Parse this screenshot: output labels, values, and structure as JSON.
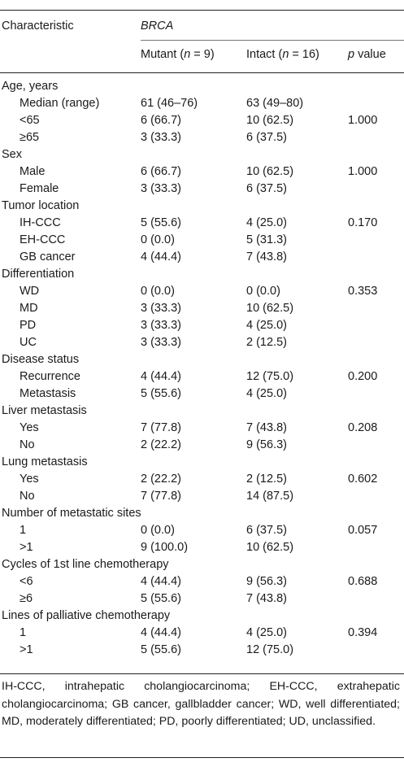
{
  "header": {
    "characteristic": "Characteristic",
    "group": "BRCA",
    "mutant_label": "Mutant (",
    "mutant_n": "n",
    "mutant_count": " = 9)",
    "intact_label": "Intact (",
    "intact_n": "n",
    "intact_count": " = 16)",
    "p_letter": "p",
    "p_rest": " value"
  },
  "rows": [
    {
      "type": "cat",
      "label": "Age, years"
    },
    {
      "type": "sub",
      "label": "Median (range)",
      "mutant": "61 (46–76)",
      "intact": "63 (49–80)",
      "p": ""
    },
    {
      "type": "sub",
      "label": "<65",
      "mutant": "6 (66.7)",
      "intact": "10 (62.5)",
      "p": "1.000"
    },
    {
      "type": "sub",
      "label": "≥65",
      "mutant": "3 (33.3)",
      "intact": "6 (37.5)",
      "p": ""
    },
    {
      "type": "cat",
      "label": "Sex"
    },
    {
      "type": "sub",
      "label": "Male",
      "mutant": "6 (66.7)",
      "intact": "10 (62.5)",
      "p": "1.000"
    },
    {
      "type": "sub",
      "label": "Female",
      "mutant": "3 (33.3)",
      "intact": "6 (37.5)",
      "p": ""
    },
    {
      "type": "cat",
      "label": "Tumor location"
    },
    {
      "type": "sub",
      "label": "IH-CCC",
      "mutant": "5 (55.6)",
      "intact": "4 (25.0)",
      "p": "0.170"
    },
    {
      "type": "sub",
      "label": "EH-CCC",
      "mutant": "0 (0.0)",
      "intact": "5 (31.3)",
      "p": ""
    },
    {
      "type": "sub",
      "label": "GB cancer",
      "mutant": "4 (44.4)",
      "intact": "7 (43.8)",
      "p": ""
    },
    {
      "type": "cat",
      "label": "Differentiation"
    },
    {
      "type": "sub",
      "label": "WD",
      "mutant": "0 (0.0)",
      "intact": "0 (0.0)",
      "p": "0.353"
    },
    {
      "type": "sub",
      "label": "MD",
      "mutant": "3 (33.3)",
      "intact": "10 (62.5)",
      "p": ""
    },
    {
      "type": "sub",
      "label": "PD",
      "mutant": "3 (33.3)",
      "intact": "4 (25.0)",
      "p": ""
    },
    {
      "type": "sub",
      "label": "UC",
      "mutant": "3 (33.3)",
      "intact": "2 (12.5)",
      "p": ""
    },
    {
      "type": "cat",
      "label": "Disease status"
    },
    {
      "type": "sub",
      "label": "Recurrence",
      "mutant": "4 (44.4)",
      "intact": "12 (75.0)",
      "p": "0.200"
    },
    {
      "type": "sub",
      "label": "Metastasis",
      "mutant": "5 (55.6)",
      "intact": "4 (25.0)",
      "p": ""
    },
    {
      "type": "cat",
      "label": "Liver metastasis"
    },
    {
      "type": "sub",
      "label": "Yes",
      "mutant": "7 (77.8)",
      "intact": "7 (43.8)",
      "p": "0.208"
    },
    {
      "type": "sub",
      "label": "No",
      "mutant": "2 (22.2)",
      "intact": "9 (56.3)",
      "p": ""
    },
    {
      "type": "cat",
      "label": "Lung metastasis"
    },
    {
      "type": "sub",
      "label": "Yes",
      "mutant": "2 (22.2)",
      "intact": "2 (12.5)",
      "p": "0.602"
    },
    {
      "type": "sub",
      "label": "No",
      "mutant": "7 (77.8)",
      "intact": "14 (87.5)",
      "p": ""
    },
    {
      "type": "cat",
      "label": "Number of metastatic sites"
    },
    {
      "type": "sub",
      "label": "1",
      "mutant": "0 (0.0)",
      "intact": "6 (37.5)",
      "p": "0.057"
    },
    {
      "type": "sub",
      "label": ">1",
      "mutant": "9 (100.0)",
      "intact": "10 (62.5)",
      "p": ""
    },
    {
      "type": "cat",
      "label": "Cycles of 1st line chemotherapy"
    },
    {
      "type": "sub",
      "label": "<6",
      "mutant": "4 (44.4)",
      "intact": "9 (56.3)",
      "p": "0.688"
    },
    {
      "type": "sub",
      "label": "≥6",
      "mutant": "5 (55.6)",
      "intact": "7 (43.8)",
      "p": ""
    },
    {
      "type": "cat",
      "label": "Lines of palliative chemotherapy"
    },
    {
      "type": "sub",
      "label": "1",
      "mutant": "4 (44.4)",
      "intact": "4 (25.0)",
      "p": "0.394"
    },
    {
      "type": "sub",
      "label": ">1",
      "mutant": "5 (55.6)",
      "intact": "12 (75.0)",
      "p": ""
    }
  ],
  "footnote": "IH-CCC, intrahepatic cholangiocarcinoma; EH-CCC, extrahepatic cholangiocarcinoma; GB cancer, gallbladder cancer; WD, well differentiated; MD, moderately differentiated; PD, poorly differentiated; UD, unclassified."
}
